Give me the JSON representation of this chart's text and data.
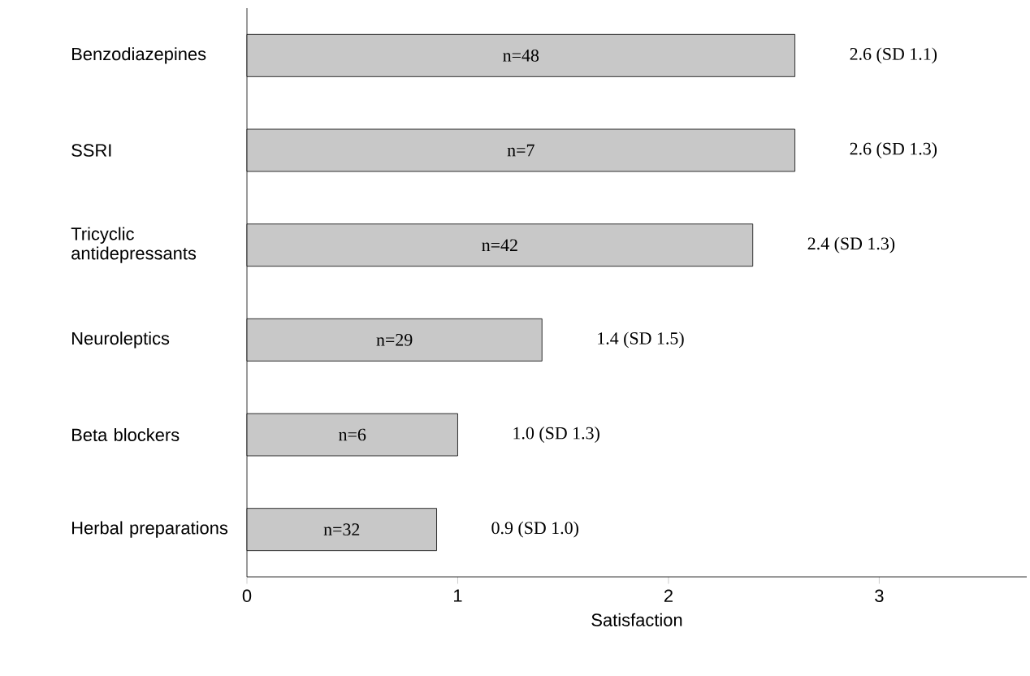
{
  "chart_data": {
    "type": "bar",
    "orientation": "horizontal",
    "xlabel": "Satisfaction",
    "categories": [
      "Benzodiazepines",
      "SSRI",
      "Tricyclic antidepressants",
      "Neuroleptics",
      "Beta blockers",
      "Herbal preparations"
    ],
    "values": [
      2.6,
      2.6,
      2.4,
      1.4,
      1.0,
      0.9
    ],
    "value_labels": [
      "2.6 (SD 1.1)",
      "2.6 (SD 1.3)",
      "2.4 (SD 1.3)",
      "1.4 (SD 1.5)",
      "1.0 (SD 1.3)",
      "0.9 (SD 1.0)"
    ],
    "color": "#c8c8c8",
    "xlim": [
      0,
      3.7
    ],
    "xticks": [
      0,
      1,
      2,
      3
    ],
    "annotations": [
      "n=48",
      "n=7",
      "n=42",
      "n=29",
      "n=6",
      "n=32"
    ]
  }
}
